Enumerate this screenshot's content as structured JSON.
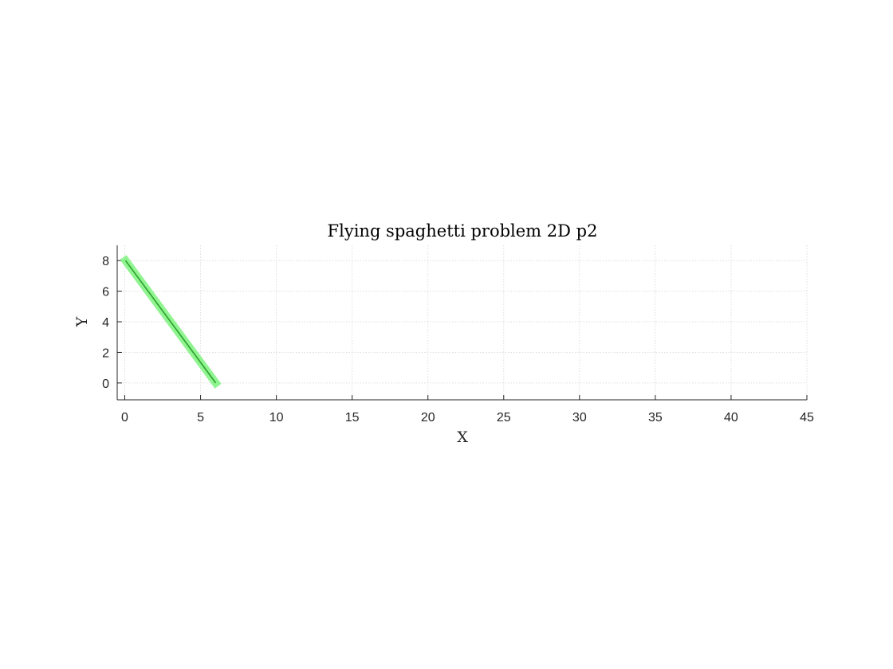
{
  "chart_data": {
    "type": "line",
    "title": "Flying spaghetti problem 2D p2",
    "xlabel": "X",
    "ylabel": "Y",
    "xlim": [
      -0.5,
      45
    ],
    "ylim": [
      -1.1,
      9
    ],
    "xticks": [
      0,
      5,
      10,
      15,
      20,
      25,
      30,
      35,
      40,
      45
    ],
    "yticks": [
      0,
      2,
      4,
      6,
      8
    ],
    "xtick_labels": [
      "0",
      "5",
      "10",
      "15",
      "20",
      "25",
      "30",
      "35",
      "40",
      "45"
    ],
    "ytick_labels": [
      "0",
      "2",
      "4",
      "6",
      "8"
    ],
    "grid": true,
    "box": false,
    "series": [
      {
        "x": [
          0.05,
          6.0
        ],
        "y": [
          8.0,
          0.0
        ],
        "color": "#2ca02c",
        "band_color": "#7cf27c"
      }
    ]
  }
}
